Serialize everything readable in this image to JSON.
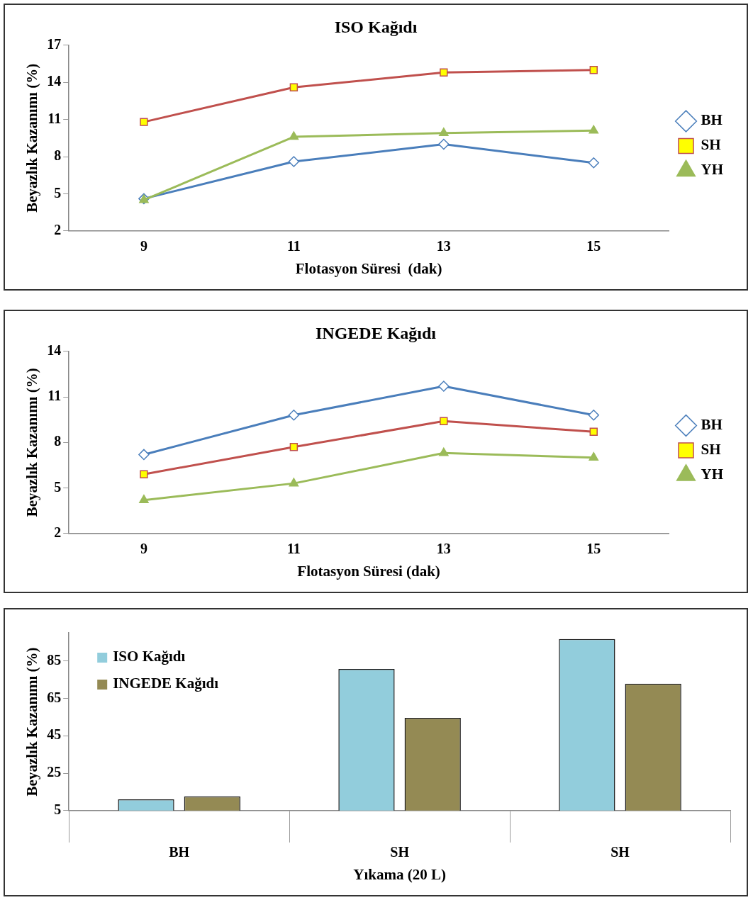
{
  "chart_data": [
    {
      "type": "line",
      "title": "ISO Kağıdı",
      "xlabel": "Flotasyon Süresi  (dak)",
      "ylabel": "Beyazlık Kazanımı (%)",
      "categories": [
        "9",
        "11",
        "13",
        "15"
      ],
      "ylim": [
        2,
        17
      ],
      "yticks": [
        2,
        5,
        8,
        11,
        14,
        17
      ],
      "grid": false,
      "legend": "right",
      "series": [
        {
          "name": "BH",
          "color": "#4a7ebb",
          "marker": "diamond",
          "values": [
            4.6,
            7.6,
            9.0,
            7.5
          ]
        },
        {
          "name": "SH",
          "color": "#c0504d",
          "marker": "square",
          "values": [
            10.8,
            13.6,
            14.8,
            15.0
          ]
        },
        {
          "name": "YH",
          "color": "#9bbb59",
          "marker": "triangle",
          "values": [
            4.5,
            9.6,
            9.9,
            10.1
          ]
        }
      ]
    },
    {
      "type": "line",
      "title": "INGEDE Kağıdı",
      "xlabel": "Flotasyon Süresi (dak)",
      "ylabel": "Beyazlık Kazanımı (%)",
      "categories": [
        "9",
        "11",
        "13",
        "15"
      ],
      "ylim": [
        2,
        14
      ],
      "yticks": [
        2,
        5,
        8,
        11,
        14
      ],
      "grid": false,
      "legend": "right",
      "series": [
        {
          "name": "BH",
          "color": "#4a7ebb",
          "marker": "diamond",
          "values": [
            7.2,
            9.8,
            11.7,
            9.8
          ]
        },
        {
          "name": "SH",
          "color": "#c0504d",
          "marker": "square",
          "values": [
            5.9,
            7.7,
            9.4,
            8.7
          ]
        },
        {
          "name": "YH",
          "color": "#9bbb59",
          "marker": "triangle",
          "values": [
            4.2,
            5.3,
            7.3,
            7.0
          ]
        }
      ]
    },
    {
      "type": "bar",
      "xlabel": "Yıkama (20 L)",
      "ylabel": "Beyazlık Kazanımı (%)",
      "categories": [
        "BH",
        "SH",
        "SH"
      ],
      "ylim": [
        5,
        100
      ],
      "yticks": [
        5,
        25,
        45,
        65,
        85
      ],
      "grid": false,
      "legend": "top left",
      "series": [
        {
          "name": "ISO Kağıdı",
          "color": "#92cddc",
          "values": [
            11,
            80.7,
            96.7
          ]
        },
        {
          "name": "INGEDE Kağıdı",
          "color": "#948a54",
          "values": [
            12.6,
            54.5,
            72.8
          ]
        }
      ]
    }
  ]
}
